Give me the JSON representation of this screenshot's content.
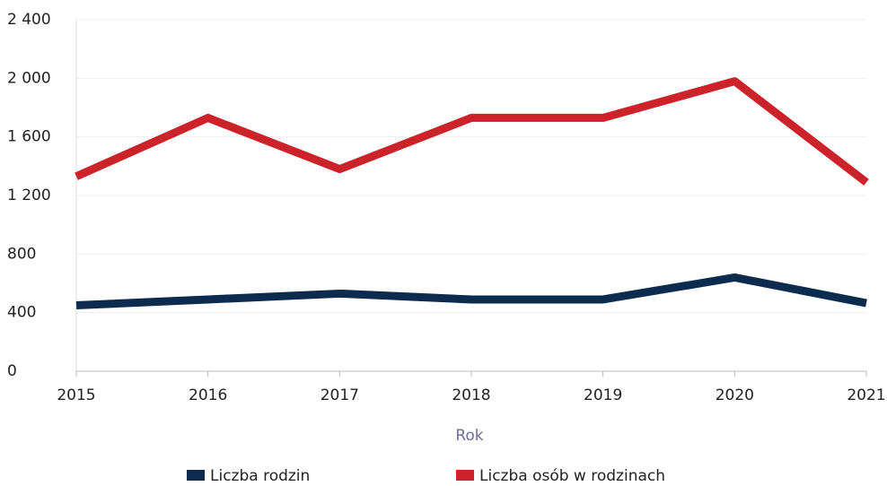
{
  "chart_data": {
    "type": "line",
    "xlabel": "Rok",
    "categories": [
      "2015",
      "2016",
      "2017",
      "2018",
      "2019",
      "2020",
      "2021"
    ],
    "series": [
      {
        "name": "Liczba rodzin",
        "color": "#0d2a4f",
        "values": [
          450,
          490,
          530,
          490,
          490,
          640,
          465
        ]
      },
      {
        "name": "Liczba osób w rodzinach",
        "color": "#cc2229",
        "values": [
          1330,
          1730,
          1380,
          1730,
          1730,
          1980,
          1290
        ]
      }
    ],
    "ylim": [
      0,
      2400
    ],
    "yticks": [
      0,
      400,
      800,
      {
        "value": 1200,
        "label": "1 200"
      },
      {
        "value": 1600,
        "label": "1 600"
      },
      {
        "value": 2000,
        "label": "2 000"
      },
      {
        "value": 2400,
        "label": "2 400"
      }
    ],
    "grid": true,
    "legend": "bottom"
  }
}
